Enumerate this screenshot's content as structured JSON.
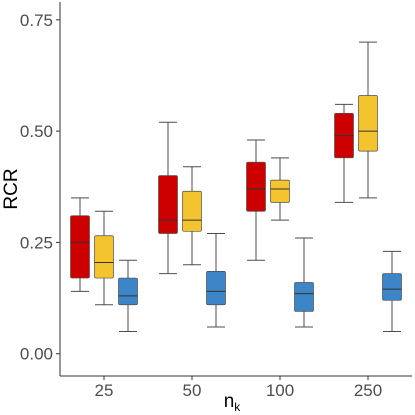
{
  "chart_data": {
    "type": "box",
    "ylabel": "RCR",
    "xlabel": {
      "main": "n",
      "subscript": "k"
    },
    "ylim": [
      -0.05,
      0.79
    ],
    "yticks": [
      0.0,
      0.25,
      0.5,
      0.75
    ],
    "ytick_labels": [
      "0.00",
      "0.25",
      "0.50",
      "0.75"
    ],
    "categories": [
      "25",
      "50",
      "100",
      "250"
    ],
    "grid": false,
    "legend": "none",
    "series": [
      {
        "color": "#cc0000",
        "boxes": [
          {
            "min": 0.14,
            "q1": 0.17,
            "median": 0.25,
            "q3": 0.31,
            "max": 0.35
          },
          {
            "min": 0.18,
            "q1": 0.27,
            "median": 0.3,
            "q3": 0.4,
            "max": 0.52
          },
          {
            "min": 0.21,
            "q1": 0.32,
            "median": 0.37,
            "q3": 0.43,
            "max": 0.48
          },
          {
            "min": 0.34,
            "q1": 0.44,
            "median": 0.49,
            "q3": 0.54,
            "max": 0.56
          }
        ]
      },
      {
        "color": "#f4c430",
        "boxes": [
          {
            "min": 0.11,
            "q1": 0.17,
            "median": 0.205,
            "q3": 0.265,
            "max": 0.32
          },
          {
            "min": 0.2,
            "q1": 0.275,
            "median": 0.3,
            "q3": 0.365,
            "max": 0.42
          },
          {
            "min": 0.3,
            "q1": 0.34,
            "median": 0.37,
            "q3": 0.39,
            "max": 0.44
          },
          {
            "min": 0.35,
            "q1": 0.455,
            "median": 0.5,
            "q3": 0.58,
            "max": 0.7
          }
        ]
      },
      {
        "color": "#3d85c6",
        "boxes": [
          {
            "min": 0.05,
            "q1": 0.11,
            "median": 0.13,
            "q3": 0.17,
            "max": 0.21
          },
          {
            "min": 0.06,
            "q1": 0.11,
            "median": 0.14,
            "q3": 0.185,
            "max": 0.27
          },
          {
            "min": 0.06,
            "q1": 0.095,
            "median": 0.135,
            "q3": 0.16,
            "max": 0.26
          },
          {
            "min": 0.05,
            "q1": 0.12,
            "median": 0.145,
            "q3": 0.18,
            "max": 0.23
          }
        ]
      }
    ]
  }
}
